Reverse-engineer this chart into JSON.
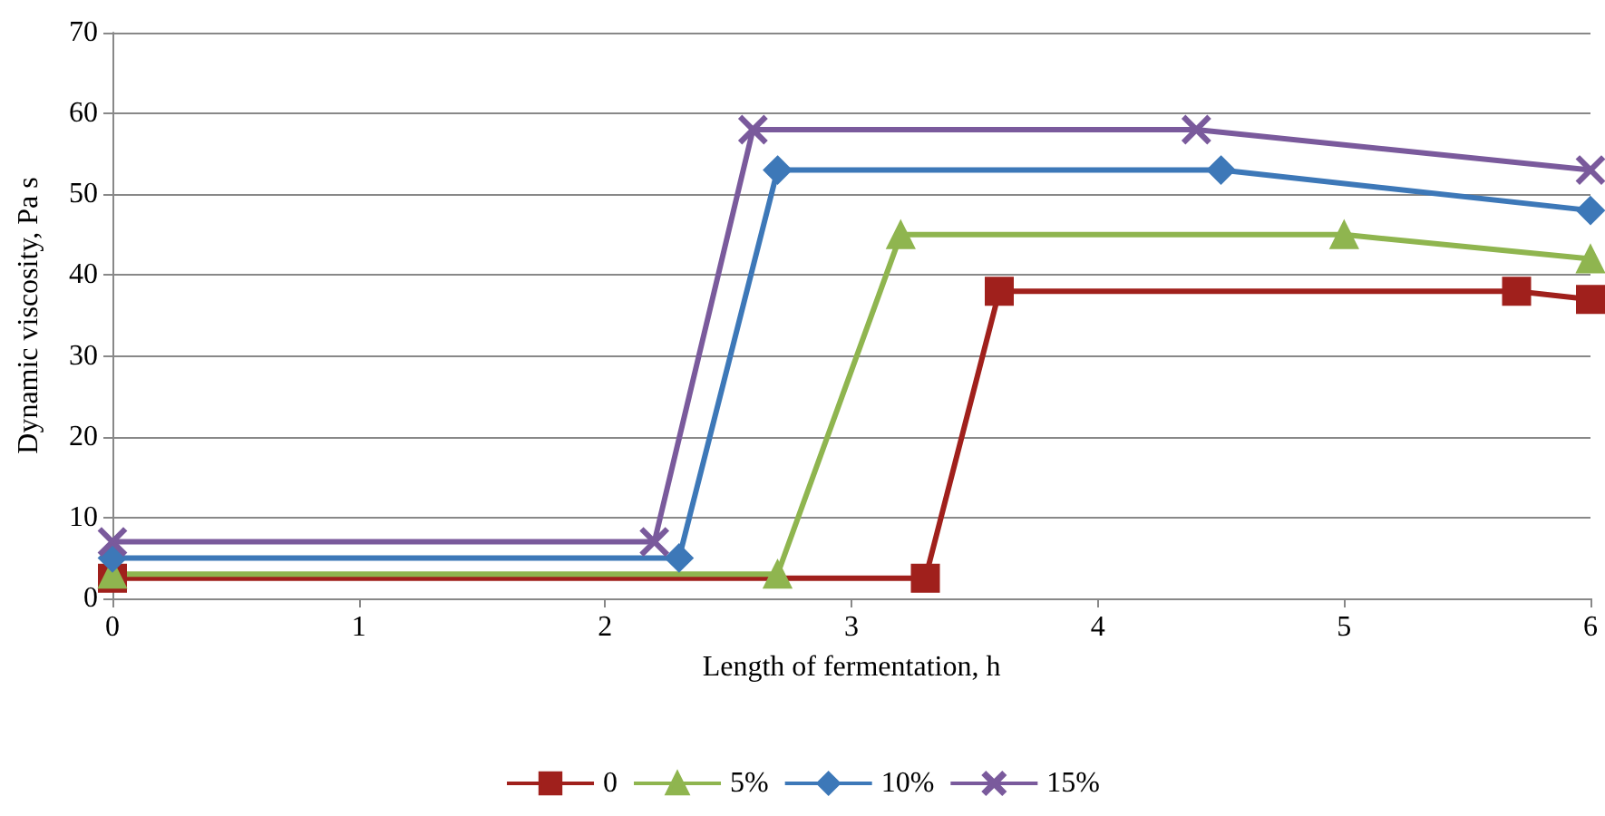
{
  "chart_data": {
    "type": "line",
    "xlabel": "Length of fermentation, h",
    "ylabel": "Dynamic viscosity, Pa s",
    "xlim": [
      0,
      6
    ],
    "xticks": [
      0,
      1,
      2,
      3,
      4,
      5,
      6
    ],
    "ylim": [
      0,
      70
    ],
    "yticks": [
      0,
      10,
      20,
      30,
      40,
      50,
      60,
      70
    ],
    "grid": "y",
    "legend": "bottom",
    "series": [
      {
        "name": "0",
        "color": "#a0201c",
        "marker": "square",
        "x": [
          0,
          3.3,
          3.6,
          5.7,
          6
        ],
        "values": [
          2.5,
          2.5,
          38,
          38,
          37
        ]
      },
      {
        "name": "5%",
        "color": "#8fb54f",
        "marker": "triangle",
        "x": [
          0,
          2.7,
          3.2,
          5,
          6
        ],
        "values": [
          3,
          3,
          45,
          45,
          42
        ]
      },
      {
        "name": "10%",
        "color": "#3d78b8",
        "marker": "diamond",
        "x": [
          0,
          2.3,
          2.7,
          4.5,
          6
        ],
        "values": [
          5,
          5,
          53,
          53,
          48
        ]
      },
      {
        "name": "15%",
        "color": "#7a5a9c",
        "marker": "cross",
        "x": [
          0,
          2.2,
          2.6,
          4.4,
          6
        ],
        "values": [
          7,
          7,
          58,
          58,
          53
        ]
      }
    ]
  }
}
